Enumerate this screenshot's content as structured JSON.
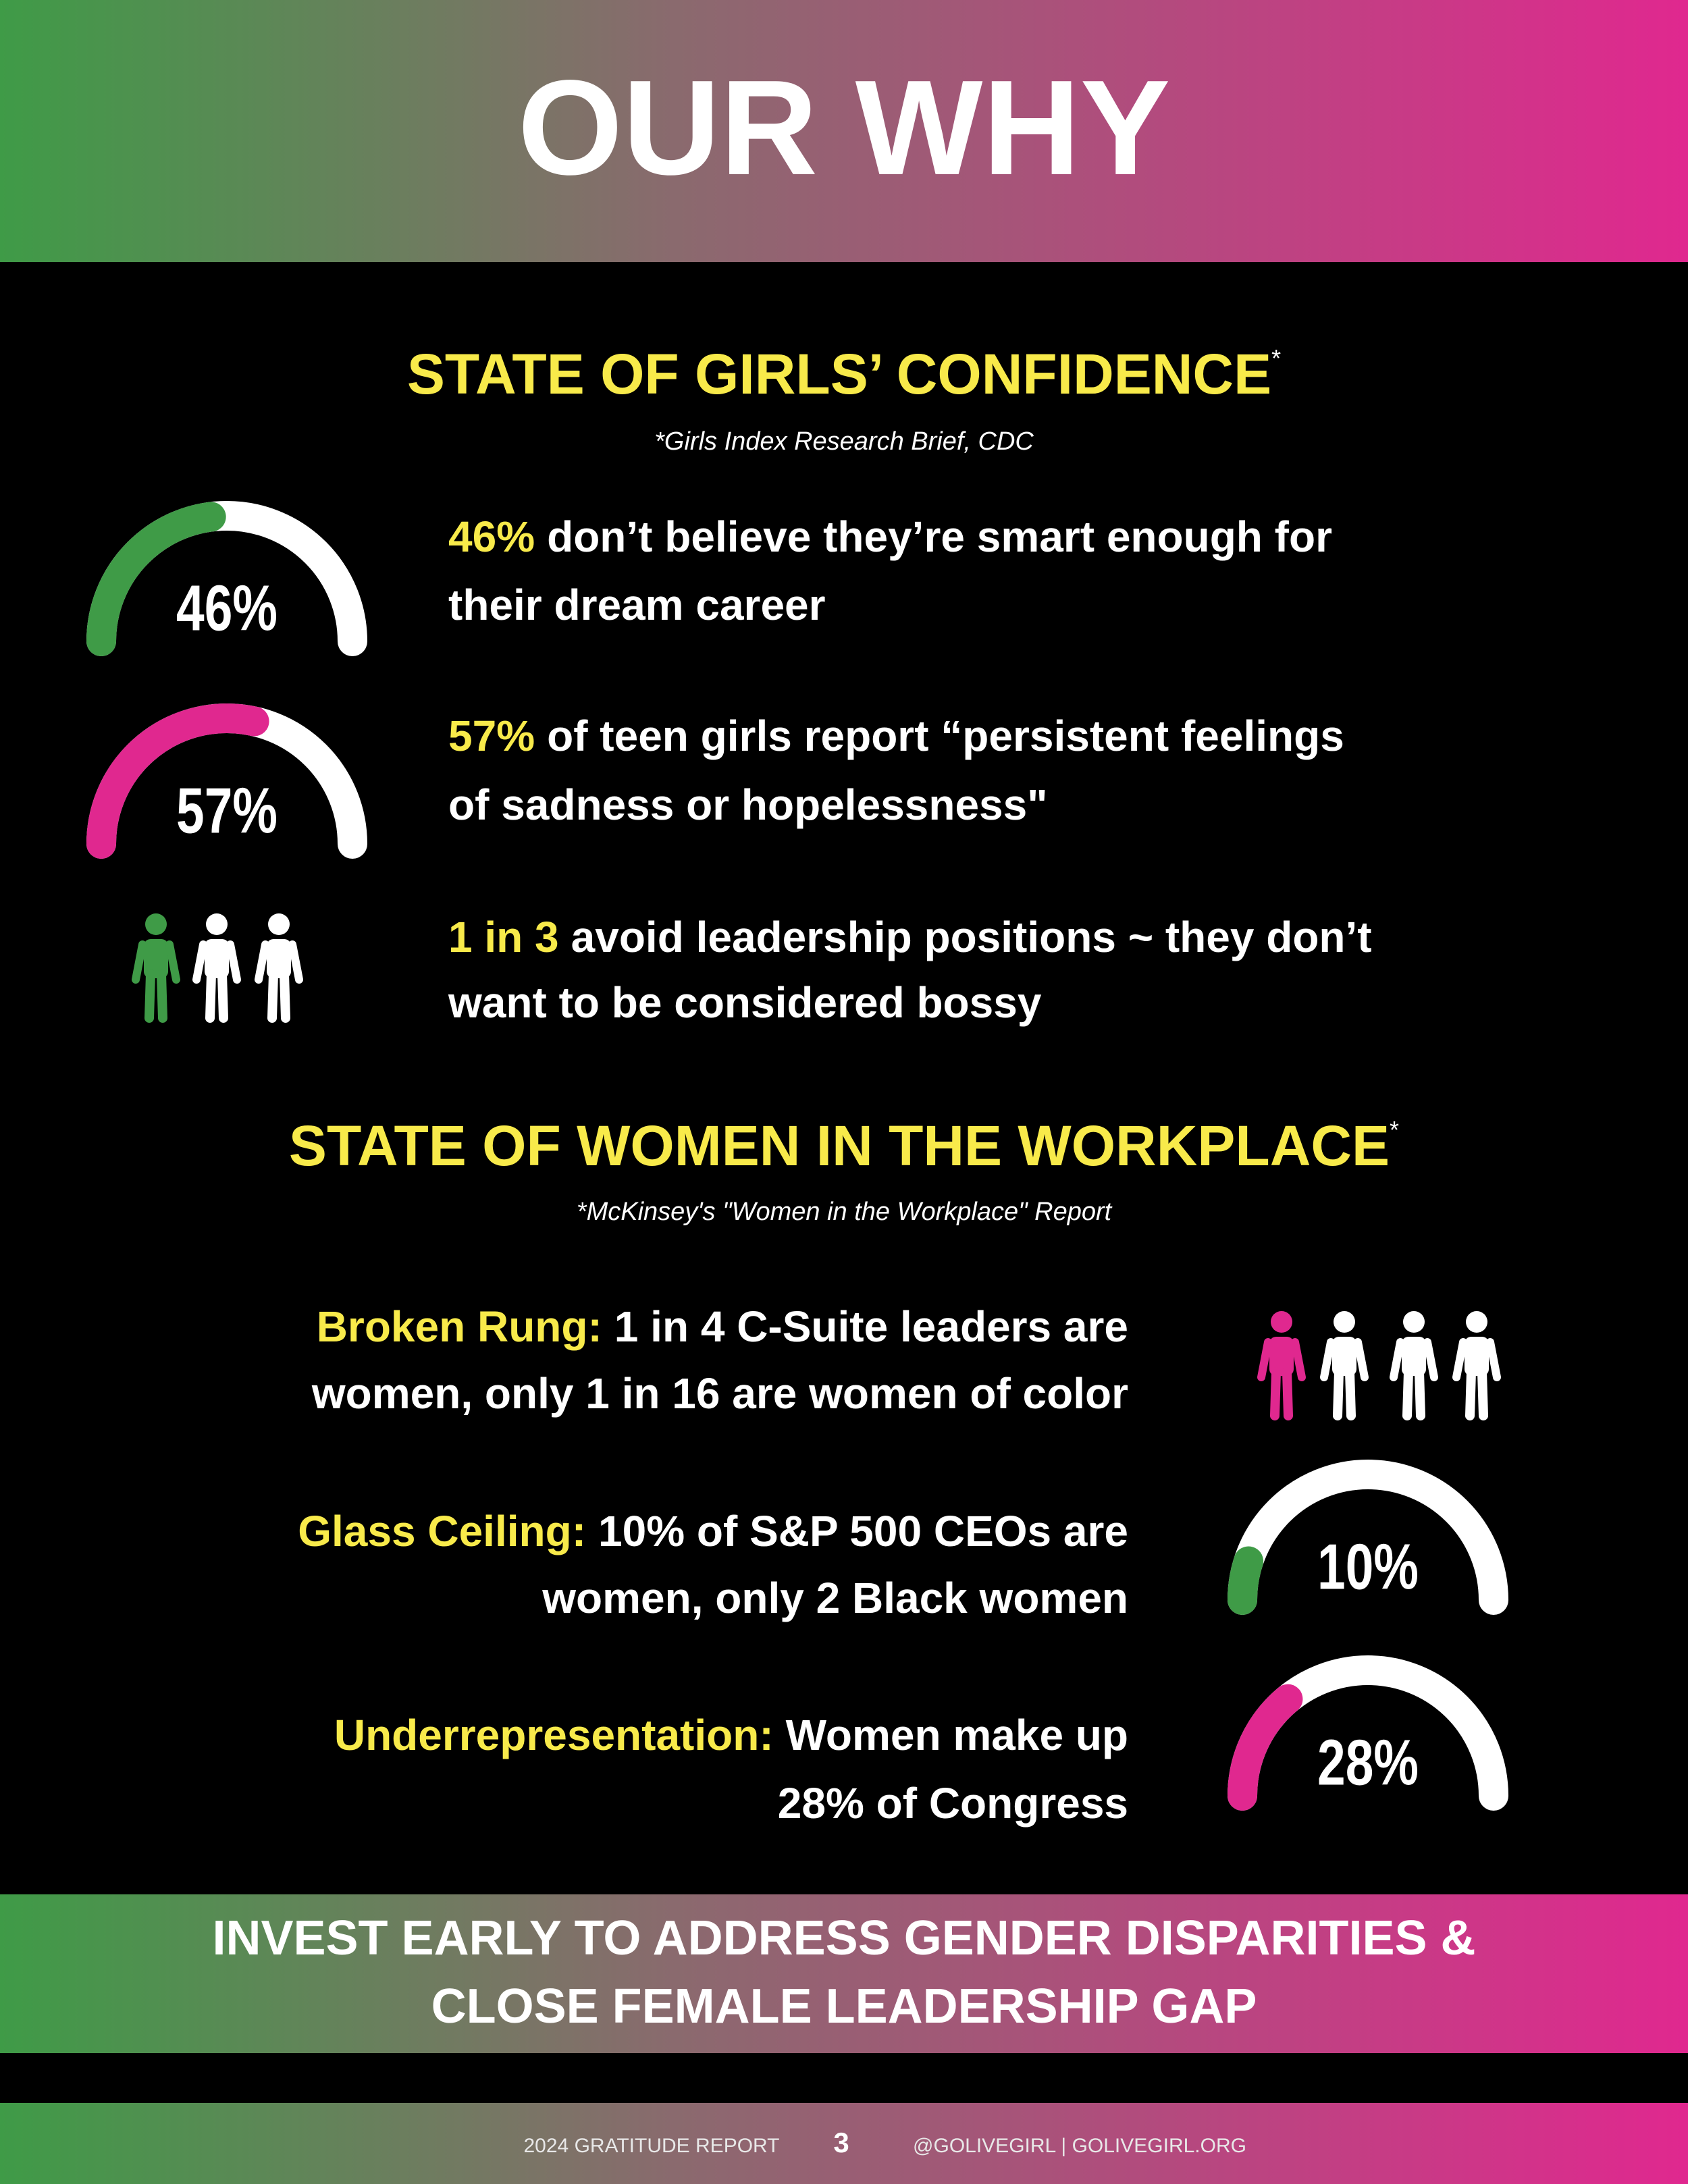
{
  "header": {
    "title": "OUR WHY"
  },
  "sections": [
    {
      "title": "STATE OF GIRLS’ CONFIDENCE",
      "marker": "*",
      "source": "*Girls Index Research Brief, CDC",
      "items": [
        {
          "highlight": "46%",
          "lines": [
            "don’t believe they’re smart enough for",
            "their dream career"
          ],
          "gauge": {
            "value": 46,
            "label": "46%",
            "range": [
              0,
              100
            ],
            "color": "#3f9b47"
          }
        },
        {
          "highlight": "57%",
          "lines": [
            "of teen girls report “persistent feelings",
            "of sadness or hopelessness\""
          ],
          "gauge": {
            "value": 57,
            "label": "57%",
            "range": [
              0,
              100
            ],
            "color": "#e0288f"
          }
        },
        {
          "highlight": "1 in 3",
          "lines": [
            "avoid leadership positions ~ they don’t",
            "want to be considered bossy"
          ]
        }
      ]
    },
    {
      "title": "STATE OF WOMEN IN THE WORKPLACE",
      "marker": "*",
      "source": "*McKinsey's \"Women in the Workplace\" Report",
      "items": [
        {
          "highlight": "Broken Rung:",
          "lines": [
            "1 in 4 C-Suite leaders are",
            "women, only 1 in 16 are women of color"
          ]
        },
        {
          "highlight": "Glass Ceiling:",
          "lines": [
            "10% of S&P 500 CEOs are",
            "women, only 2 Black women"
          ],
          "gauge": {
            "value": 10,
            "label": "10%",
            "range": [
              0,
              100
            ],
            "color": "#3f9b47"
          }
        },
        {
          "highlight": "Underrepresentation:",
          "lines": [
            "Women make up",
            "28% of Congress"
          ],
          "gauge": {
            "value": 28,
            "label": "28%",
            "range": [
              0,
              100
            ],
            "color": "#e0288f"
          }
        }
      ]
    }
  ],
  "banner": {
    "lines": [
      "INVEST EARLY TO ADDRESS GENDER DISPARITIES &",
      "CLOSE FEMALE LEADERSHIP GAP"
    ]
  },
  "footer": {
    "report": "2024 GRATITUDE REPORT",
    "page": "3",
    "links": "@GOLIVEGIRL | GOLIVEGIRL.ORG"
  }
}
